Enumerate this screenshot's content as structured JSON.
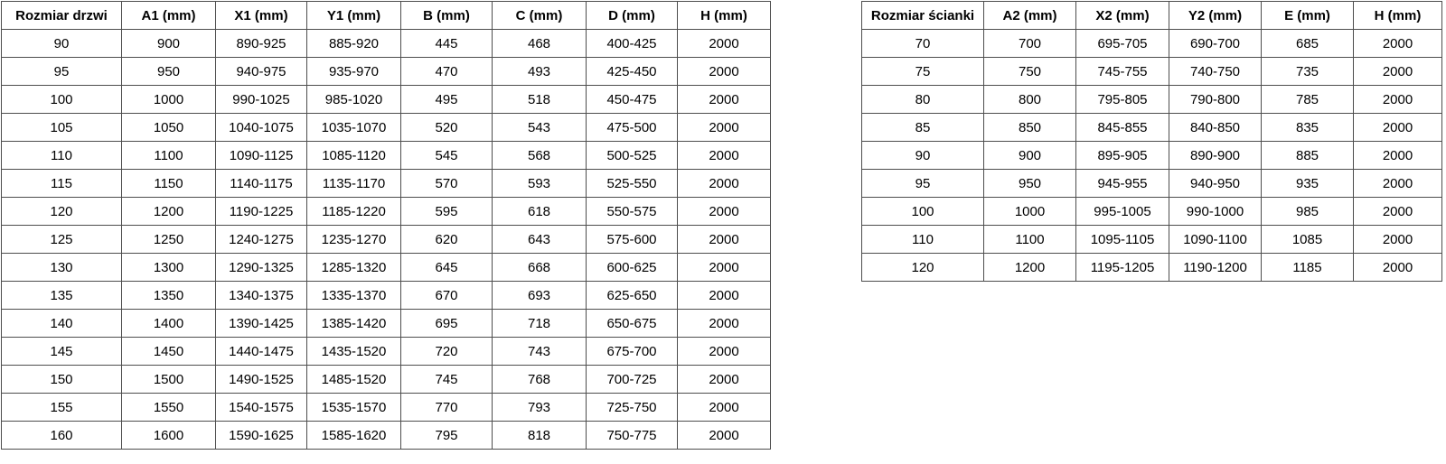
{
  "page": {
    "background_color": "#ffffff",
    "border_color": "#4d4d4d",
    "text_color": "#000000"
  },
  "tables": [
    {
      "name": "door-size-table",
      "columns": [
        "Rozmiar drzwi",
        "A1 (mm)",
        "X1 (mm)",
        "Y1 (mm)",
        "B (mm)",
        "C (mm)",
        "D (mm)",
        "H (mm)"
      ],
      "rows": [
        [
          "90",
          "900",
          "890-925",
          "885-920",
          "445",
          "468",
          "400-425",
          "2000"
        ],
        [
          "95",
          "950",
          "940-975",
          "935-970",
          "470",
          "493",
          "425-450",
          "2000"
        ],
        [
          "100",
          "1000",
          "990-1025",
          "985-1020",
          "495",
          "518",
          "450-475",
          "2000"
        ],
        [
          "105",
          "1050",
          "1040-1075",
          "1035-1070",
          "520",
          "543",
          "475-500",
          "2000"
        ],
        [
          "110",
          "1100",
          "1090-1125",
          "1085-1120",
          "545",
          "568",
          "500-525",
          "2000"
        ],
        [
          "115",
          "1150",
          "1140-1175",
          "1135-1170",
          "570",
          "593",
          "525-550",
          "2000"
        ],
        [
          "120",
          "1200",
          "1190-1225",
          "1185-1220",
          "595",
          "618",
          "550-575",
          "2000"
        ],
        [
          "125",
          "1250",
          "1240-1275",
          "1235-1270",
          "620",
          "643",
          "575-600",
          "2000"
        ],
        [
          "130",
          "1300",
          "1290-1325",
          "1285-1320",
          "645",
          "668",
          "600-625",
          "2000"
        ],
        [
          "135",
          "1350",
          "1340-1375",
          "1335-1370",
          "670",
          "693",
          "625-650",
          "2000"
        ],
        [
          "140",
          "1400",
          "1390-1425",
          "1385-1420",
          "695",
          "718",
          "650-675",
          "2000"
        ],
        [
          "145",
          "1450",
          "1440-1475",
          "1435-1520",
          "720",
          "743",
          "675-700",
          "2000"
        ],
        [
          "150",
          "1500",
          "1490-1525",
          "1485-1520",
          "745",
          "768",
          "700-725",
          "2000"
        ],
        [
          "155",
          "1550",
          "1540-1575",
          "1535-1570",
          "770",
          "793",
          "725-750",
          "2000"
        ],
        [
          "160",
          "1600",
          "1590-1625",
          "1585-1620",
          "795",
          "818",
          "750-775",
          "2000"
        ]
      ]
    },
    {
      "name": "wall-panel-size-table",
      "columns": [
        "Rozmiar ścianki",
        "A2 (mm)",
        "X2 (mm)",
        "Y2 (mm)",
        "E (mm)",
        "H (mm)"
      ],
      "rows": [
        [
          "70",
          "700",
          "695-705",
          "690-700",
          "685",
          "2000"
        ],
        [
          "75",
          "750",
          "745-755",
          "740-750",
          "735",
          "2000"
        ],
        [
          "80",
          "800",
          "795-805",
          "790-800",
          "785",
          "2000"
        ],
        [
          "85",
          "850",
          "845-855",
          "840-850",
          "835",
          "2000"
        ],
        [
          "90",
          "900",
          "895-905",
          "890-900",
          "885",
          "2000"
        ],
        [
          "95",
          "950",
          "945-955",
          "940-950",
          "935",
          "2000"
        ],
        [
          "100",
          "1000",
          "995-1005",
          "990-1000",
          "985",
          "2000"
        ],
        [
          "110",
          "1100",
          "1095-1105",
          "1090-1100",
          "1085",
          "2000"
        ],
        [
          "120",
          "1200",
          "1195-1205",
          "1190-1200",
          "1185",
          "2000"
        ]
      ]
    }
  ]
}
